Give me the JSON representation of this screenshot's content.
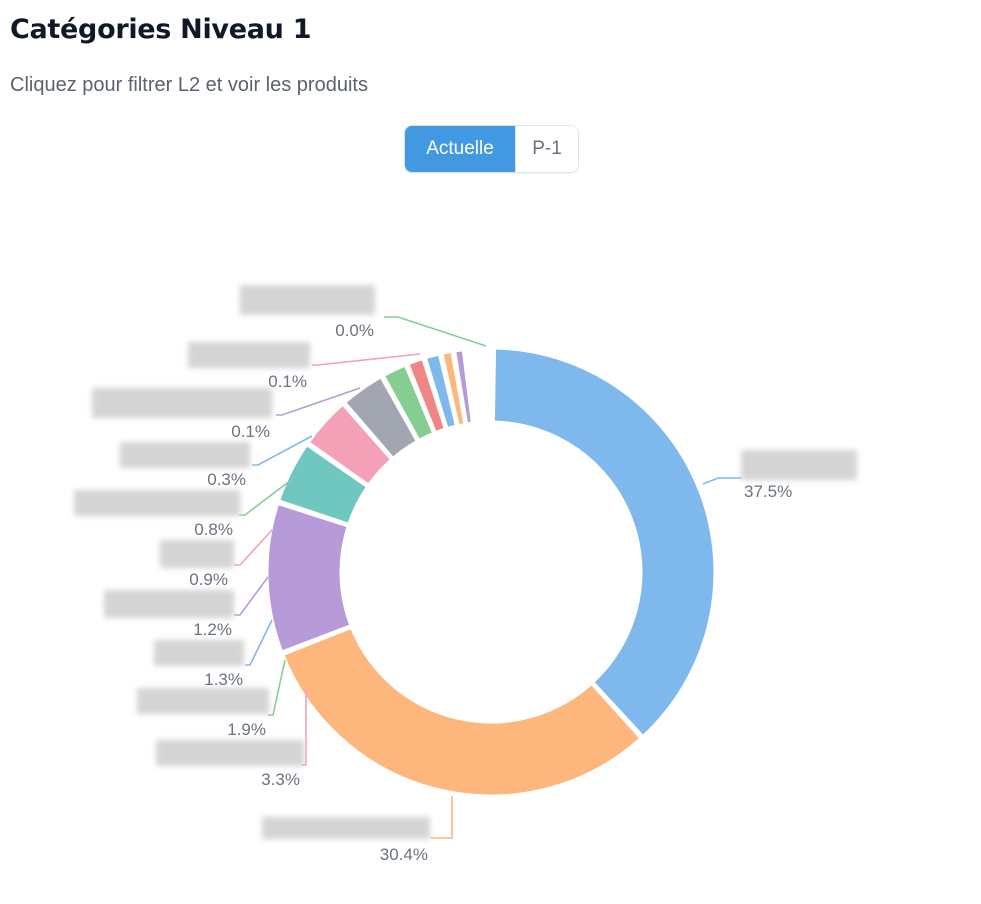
{
  "header": {
    "title": "Catégories Niveau 1",
    "subtitle": "Cliquez pour filtrer L2 et voir les produits"
  },
  "toggle": {
    "current_label": "Actuelle",
    "previous_label": "P-1",
    "active": "current"
  },
  "chart_data": {
    "type": "pie",
    "donut": true,
    "unit": "%",
    "slices": [
      {
        "label": "",
        "value": 37.5,
        "color": "#7fb8ec"
      },
      {
        "label": "",
        "value": 30.4,
        "color": "#fdb67b"
      },
      {
        "label": "",
        "value": 10.8,
        "color": "#b79bd9"
      },
      {
        "label": "",
        "value": 4.6,
        "color": "#6fc7bf"
      },
      {
        "label": "",
        "value": 3.8,
        "color": "#f4a1b8"
      },
      {
        "label": "",
        "value": 3.3,
        "color": "#a1a6b0"
      },
      {
        "label": "",
        "value": 1.9,
        "color": "#86cd92"
      },
      {
        "label": "",
        "value": 1.3,
        "color": "#ef8585"
      },
      {
        "label": "",
        "value": 1.2,
        "color": "#7fb8ec"
      },
      {
        "label": "",
        "value": 0.9,
        "color": "#fdb67b"
      },
      {
        "label": "",
        "value": 0.8,
        "color": "#b79bd9"
      },
      {
        "label": "",
        "value": 0.3,
        "color": "#6fc7bf"
      },
      {
        "label": "",
        "value": 0.1,
        "color": "#f4a1b8"
      },
      {
        "label": "",
        "value": 0.1,
        "color": "#a1a6b0"
      },
      {
        "label": "",
        "value": 0.0,
        "color": "#86cd92"
      },
      {
        "label": "",
        "value": 0.0,
        "color": "#ef8585"
      },
      {
        "label": "",
        "value": 0.0,
        "color": "#7fb8ec"
      }
    ],
    "labels": [
      {
        "text": "37.5%",
        "color": "#7fb8ec"
      },
      {
        "text": "30.4%",
        "color": "#fdb67b"
      },
      {
        "text": "3.3%",
        "color": "#f4a1b8"
      },
      {
        "text": "1.9%",
        "color": "#86cd92"
      },
      {
        "text": "1.3%",
        "color": "#7fb8ec"
      },
      {
        "text": "1.2%",
        "color": "#b79bd9"
      },
      {
        "text": "0.9%",
        "color": "#f4a1b8"
      },
      {
        "text": "0.8%",
        "color": "#86cd92"
      },
      {
        "text": "0.3%",
        "color": "#7fb8ec"
      },
      {
        "text": "0.1%",
        "color": "#b79bd9"
      },
      {
        "text": "0.1%",
        "color": "#f4a1b8"
      },
      {
        "text": "0.0%",
        "color": "#86cd92"
      }
    ],
    "legend": "none"
  }
}
